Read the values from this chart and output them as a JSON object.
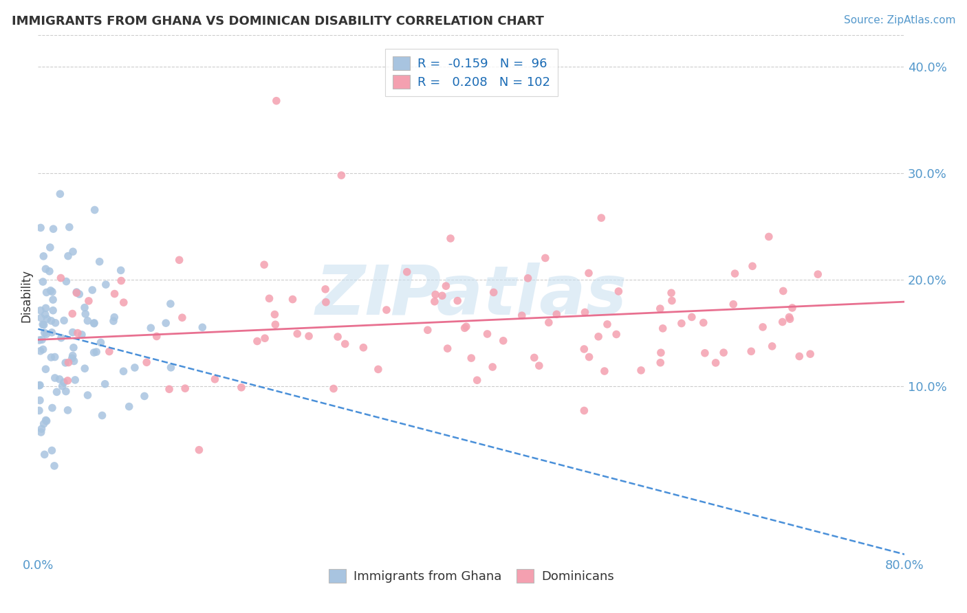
{
  "title": "IMMIGRANTS FROM GHANA VS DOMINICAN DISABILITY CORRELATION CHART",
  "source": "Source: ZipAtlas.com",
  "ylabel": "Disability",
  "ytick_labels": [
    "10.0%",
    "20.0%",
    "30.0%",
    "40.0%"
  ],
  "ytick_values": [
    0.1,
    0.2,
    0.3,
    0.4
  ],
  "xlim": [
    0.0,
    0.8
  ],
  "ylim": [
    -0.06,
    0.43
  ],
  "ghana_R": -0.159,
  "ghana_N": 96,
  "dominican_R": 0.208,
  "dominican_N": 102,
  "ghana_color": "#a8c4e0",
  "dominican_color": "#f4a0b0",
  "ghana_line_color": "#4a90d9",
  "dominican_line_color": "#e87090",
  "legend_color": "#1a6bb5",
  "text_color": "#333333",
  "tick_color": "#5599cc",
  "watermark": "ZIPatlas",
  "background_color": "#ffffff",
  "grid_color": "#cccccc",
  "seed": 42
}
